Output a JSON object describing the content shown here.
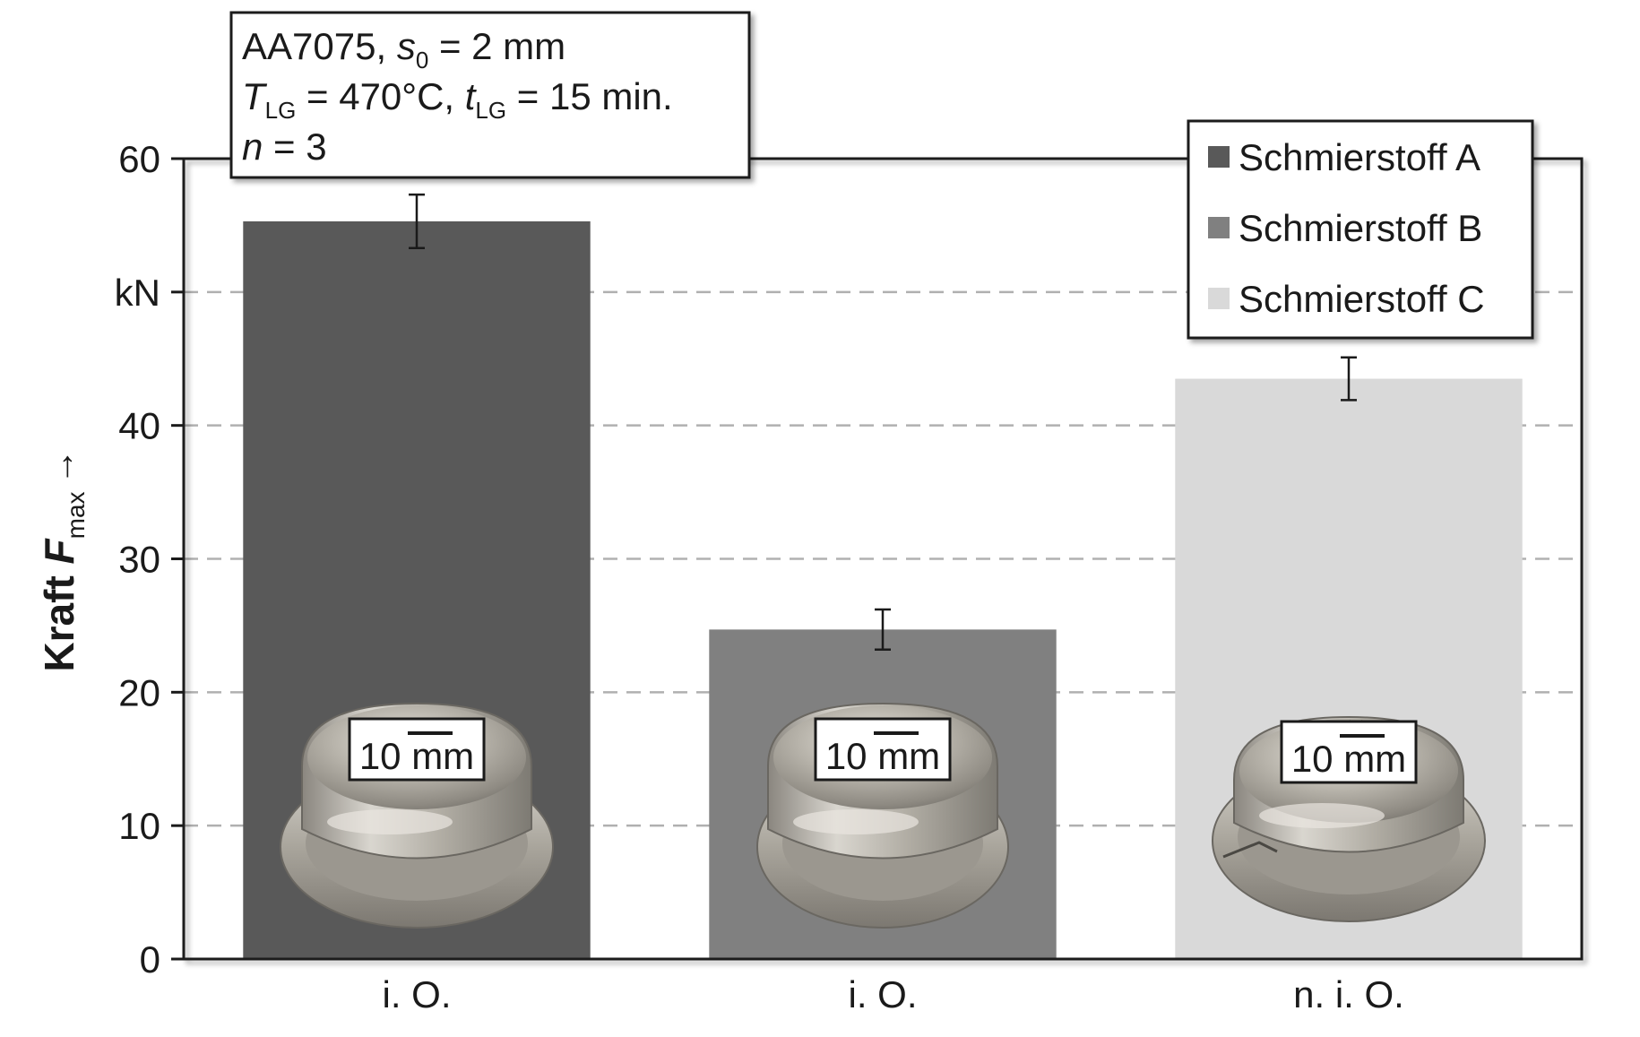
{
  "chart_data": {
    "type": "bar",
    "categories": [
      "i. O.",
      "i. O.",
      "n. i. O."
    ],
    "series": [
      {
        "name": "Schmierstoff A",
        "values": [
          55.3,
          null,
          null
        ],
        "error": [
          2.0,
          null,
          null
        ],
        "color": "#595959"
      },
      {
        "name": "Schmierstoff B",
        "values": [
          null,
          24.7,
          null
        ],
        "error": [
          null,
          1.5,
          null
        ],
        "color": "#808080"
      },
      {
        "name": "Schmierstoff C",
        "values": [
          null,
          null,
          43.5
        ],
        "error": [
          null,
          null,
          1.6
        ],
        "color": "#d9d9d9"
      }
    ],
    "ylim": [
      0,
      60
    ],
    "yticks": [
      0,
      10,
      20,
      30,
      40,
      50,
      60
    ],
    "ytick_labels": [
      "0",
      "10",
      "20",
      "30",
      "40",
      "kN",
      "60"
    ],
    "ylabel": {
      "prefix": "Kraft ",
      "symbol": "F",
      "subscript": "max",
      "arrow": "→"
    },
    "grid": "horizontal dashed",
    "legend_position": "top-right",
    "annotation": {
      "material": "AA7075, ",
      "thickness_symbol": "s",
      "thickness_sub": "0",
      "thickness_value": " = 2 mm",
      "temp_symbol": "T",
      "temp_sub": "LG",
      "temp_value": " = 470°C, ",
      "time_symbol": "t",
      "time_sub": "LG",
      "time_value": " = 15 min.",
      "n_symbol": "n",
      "n_value": " = 3"
    },
    "scale_bar_label": "10 mm"
  }
}
